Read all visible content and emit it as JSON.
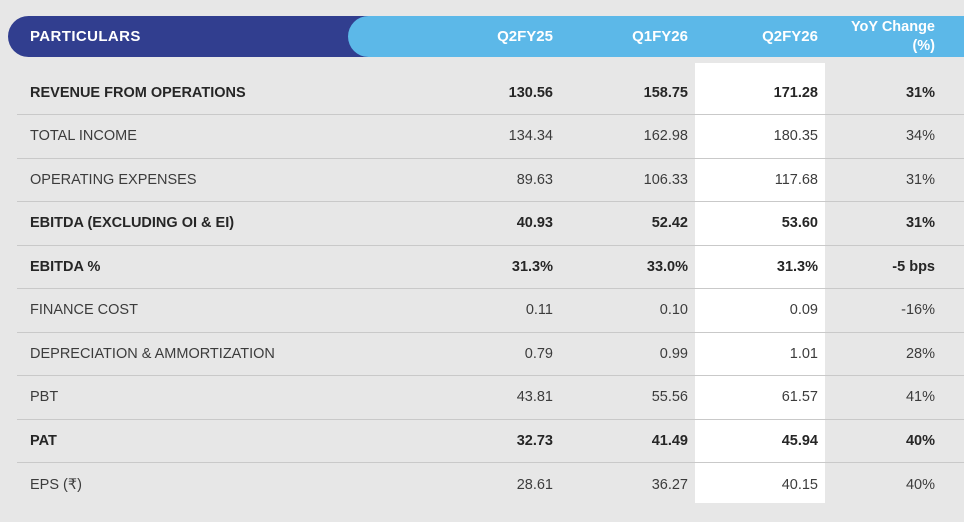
{
  "page": {
    "background_color": "#E7E7E7",
    "header_dark_blue": "#313E8F",
    "header_light_blue": "#5CB8E8",
    "highlight_column_color": "#FFFFFF"
  },
  "header": {
    "particulars_label": "PARTICULARS",
    "quarter_columns": [
      "Q2FY25",
      "Q1FY26",
      "Q2FY26"
    ],
    "yoy_header": [
      "YoY Change",
      "(%)"
    ]
  },
  "table": {
    "highlighted_column": "Q2FY26",
    "rows": [
      {
        "label": "REVENUE FROM OPERATIONS",
        "bold": true,
        "q2fy25": "130.56",
        "q1fy26": "158.75",
        "q2fy26": "171.28",
        "yoy": "31%"
      },
      {
        "label": "TOTAL INCOME",
        "bold": false,
        "q2fy25": "134.34",
        "q1fy26": "162.98",
        "q2fy26": "180.35",
        "yoy": "34%"
      },
      {
        "label": "OPERATING EXPENSES",
        "bold": false,
        "q2fy25": "89.63",
        "q1fy26": "106.33",
        "q2fy26": "117.68",
        "yoy": "31%"
      },
      {
        "label": "EBITDA (EXCLUDING OI & EI)",
        "bold": true,
        "q2fy25": "40.93",
        "q1fy26": "52.42",
        "q2fy26": "53.60",
        "yoy": "31%"
      },
      {
        "label": "EBITDA %",
        "bold": true,
        "q2fy25": "31.3%",
        "q1fy26": "33.0%",
        "q2fy26": "31.3%",
        "yoy": "-5 bps"
      },
      {
        "label": "FINANCE COST",
        "bold": false,
        "q2fy25": "0.11",
        "q1fy26": "0.10",
        "q2fy26": "0.09",
        "yoy": "-16%"
      },
      {
        "label": "DEPRECIATION & AMMORTIZATION",
        "bold": false,
        "q2fy25": "0.79",
        "q1fy26": "0.99",
        "q2fy26": "1.01",
        "yoy": "28%"
      },
      {
        "label": "PBT",
        "bold": false,
        "q2fy25": "43.81",
        "q1fy26": "55.56",
        "q2fy26": "61.57",
        "yoy": "41%"
      },
      {
        "label": "PAT",
        "bold": true,
        "q2fy25": "32.73",
        "q1fy26": "41.49",
        "q2fy26": "45.94",
        "yoy": "40%"
      },
      {
        "label": "EPS (₹)",
        "bold": false,
        "q2fy25": "28.61",
        "q1fy26": "36.27",
        "q2fy26": "40.15",
        "yoy": "40%"
      }
    ]
  }
}
